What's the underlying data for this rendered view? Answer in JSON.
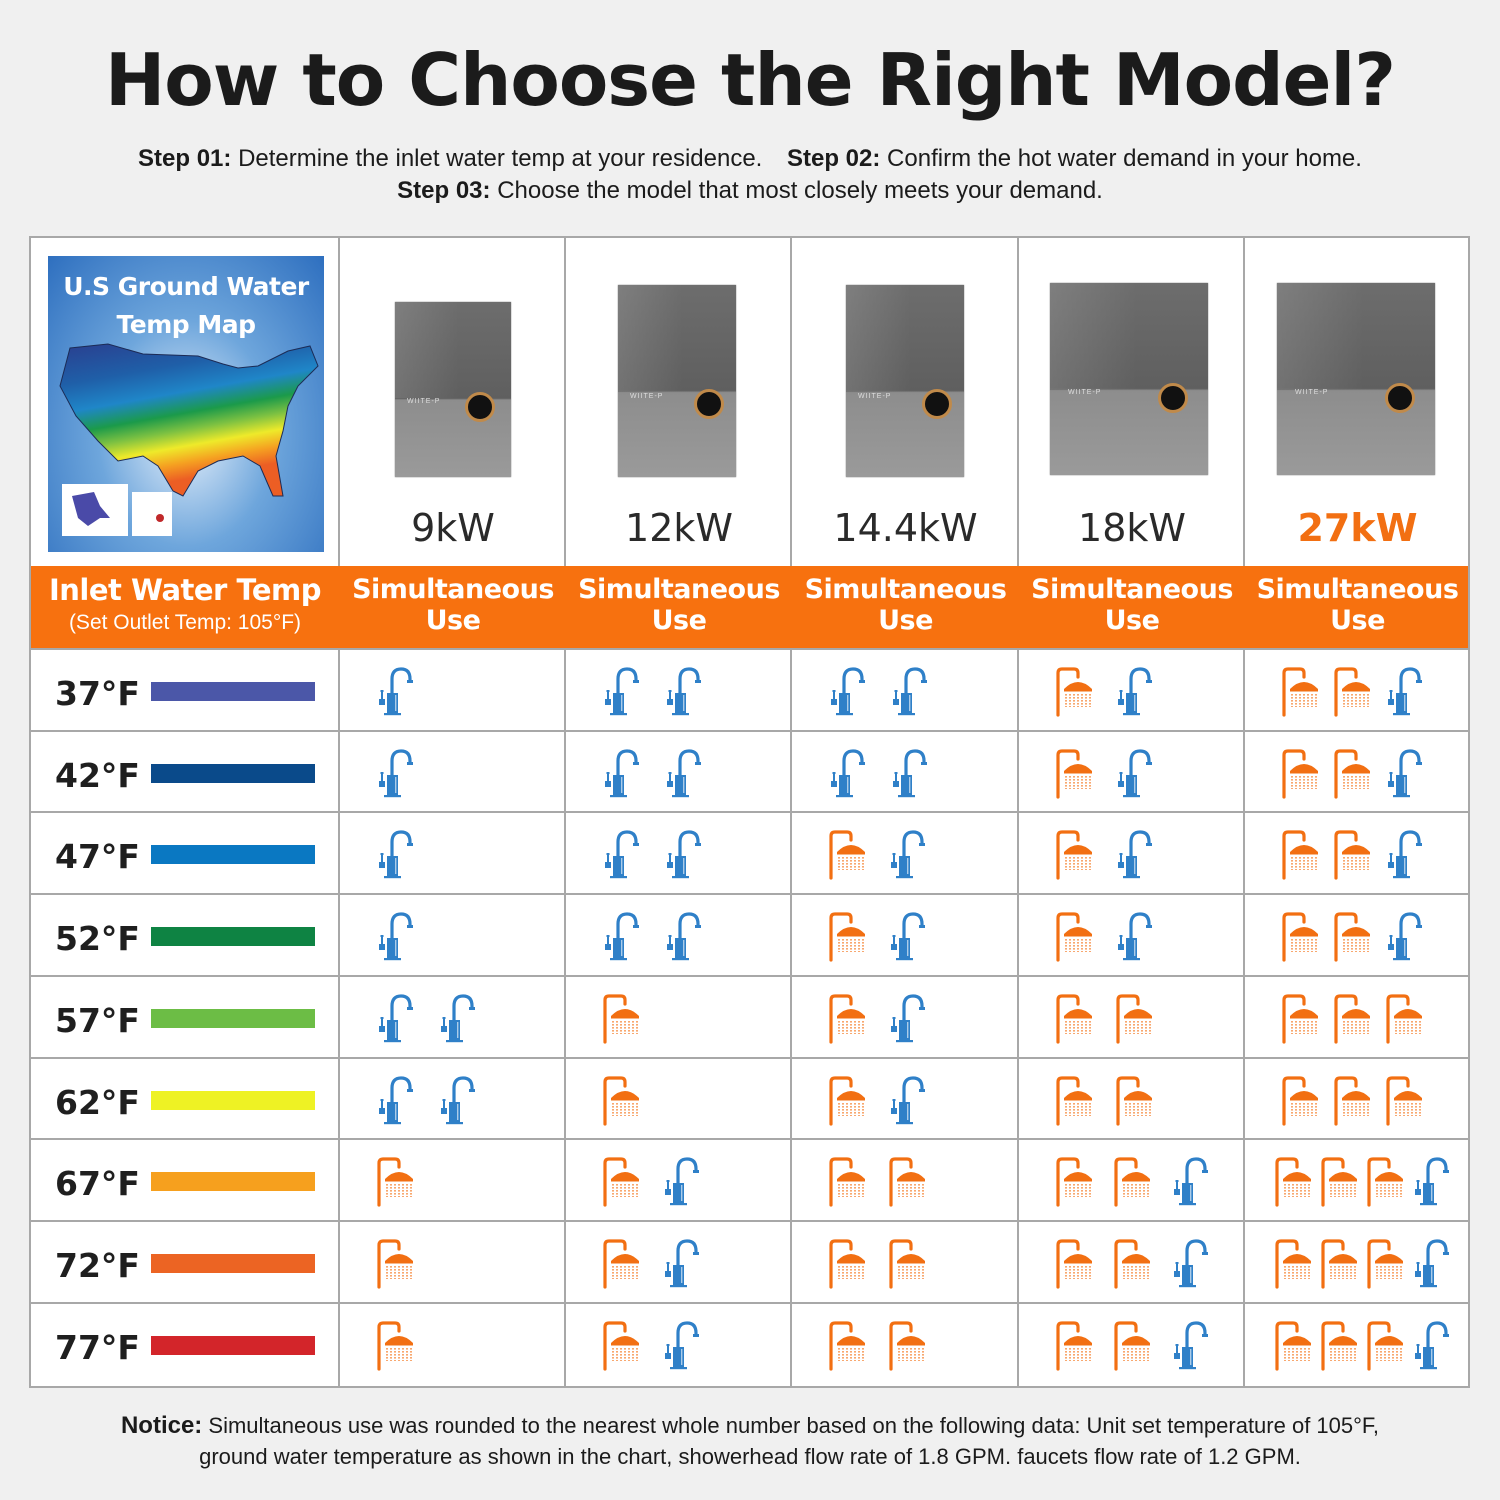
{
  "title": "How to Choose the Right Model?",
  "steps": [
    {
      "label": "Step 01:",
      "text": "Determine the inlet water temp at your residence."
    },
    {
      "label": "Step 02:",
      "text": "Confirm the hot water demand in your home."
    },
    {
      "label": "Step 03:",
      "text": "Choose the model that most closely meets your demand."
    }
  ],
  "map": {
    "title_line1": "U.S Ground Water",
    "title_line2": "Temp Map"
  },
  "inlet_header": {
    "title": "Inlet Water Temp",
    "subtitle": "(Set Outlet Temp: 105°F)"
  },
  "simultaneous_header": {
    "line1": "Simultaneous",
    "line2": "Use"
  },
  "models": [
    {
      "label": "9kW",
      "highlight": false
    },
    {
      "label": "12kW",
      "highlight": false
    },
    {
      "label": "14.4kW",
      "highlight": false
    },
    {
      "label": "18kW",
      "highlight": false
    },
    {
      "label": "27kW",
      "highlight": true
    }
  ],
  "colors": {
    "accent_orange": "#f7710f",
    "shower_icon": "#f26f12",
    "faucet_icon": "#2f80c8",
    "highlight_model": "#f26f12"
  },
  "legend": {
    "shower-icon": "showerhead (1.8 GPM)",
    "faucet-icon": "faucet (1.2 GPM)"
  },
  "rows": [
    {
      "temp": "37°F",
      "color": "#4b57a8",
      "use": [
        [
          0,
          1
        ],
        [
          0,
          2
        ],
        [
          0,
          2
        ],
        [
          1,
          1
        ],
        [
          2,
          1
        ]
      ]
    },
    {
      "temp": "42°F",
      "color": "#0a4a8a",
      "use": [
        [
          0,
          1
        ],
        [
          0,
          2
        ],
        [
          0,
          2
        ],
        [
          1,
          1
        ],
        [
          2,
          1
        ]
      ]
    },
    {
      "temp": "47°F",
      "color": "#0a78c2",
      "use": [
        [
          0,
          1
        ],
        [
          0,
          2
        ],
        [
          1,
          1
        ],
        [
          1,
          1
        ],
        [
          2,
          1
        ]
      ]
    },
    {
      "temp": "52°F",
      "color": "#0e8343",
      "use": [
        [
          0,
          1
        ],
        [
          0,
          2
        ],
        [
          1,
          1
        ],
        [
          1,
          1
        ],
        [
          2,
          1
        ]
      ]
    },
    {
      "temp": "57°F",
      "color": "#6cbd45",
      "use": [
        [
          0,
          2
        ],
        [
          1,
          0
        ],
        [
          1,
          1
        ],
        [
          2,
          0
        ],
        [
          3,
          0
        ]
      ]
    },
    {
      "temp": "62°F",
      "color": "#eef224",
      "use": [
        [
          0,
          2
        ],
        [
          1,
          0
        ],
        [
          1,
          1
        ],
        [
          2,
          0
        ],
        [
          3,
          0
        ]
      ]
    },
    {
      "temp": "67°F",
      "color": "#f6a01e",
      "use": [
        [
          1,
          0
        ],
        [
          1,
          1
        ],
        [
          2,
          0
        ],
        [
          2,
          1
        ],
        [
          3,
          1
        ]
      ]
    },
    {
      "temp": "72°F",
      "color": "#ec6423",
      "use": [
        [
          1,
          0
        ],
        [
          1,
          1
        ],
        [
          2,
          0
        ],
        [
          2,
          1
        ],
        [
          3,
          1
        ]
      ]
    },
    {
      "temp": "77°F",
      "color": "#d3252a",
      "use": [
        [
          1,
          0
        ],
        [
          1,
          1
        ],
        [
          2,
          0
        ],
        [
          2,
          1
        ],
        [
          3,
          1
        ]
      ]
    }
  ],
  "notice": {
    "label": "Notice:",
    "line1": "Simultaneous use was rounded to the nearest whole number based on the following data: Unit set temperature of 105°F,",
    "line2": "ground water temperature as shown in the chart, showerhead flow rate of 1.8 GPM. faucets flow rate of 1.2 GPM."
  }
}
